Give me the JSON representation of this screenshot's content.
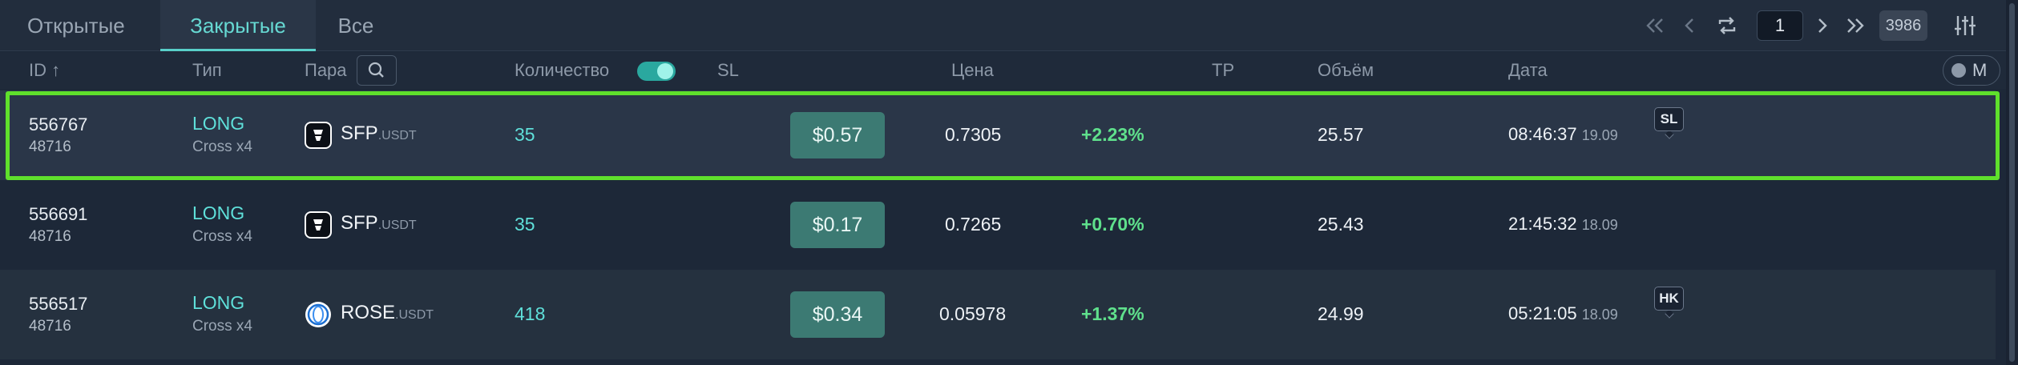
{
  "tabs": [
    {
      "label": "Открытые"
    },
    {
      "label": "Закрытые",
      "active": true
    },
    {
      "label": "Все"
    }
  ],
  "pagination": {
    "current_page": "1",
    "total": "3986"
  },
  "columns": {
    "id": "ID ↑",
    "type": "Тип",
    "pair": "Пара",
    "quantity": "Количество",
    "sl": "SL",
    "price": "Цена",
    "tp": "TP",
    "volume": "Объём",
    "date": "Дата"
  },
  "mode_toggle": {
    "label": "M"
  },
  "colors": {
    "accent": "#5fe0da",
    "profit": "#5fe08c",
    "selected_outline": "#5fe02c",
    "sl_button": "#3c7a73"
  },
  "rows": [
    {
      "id": "556767",
      "sub_id": "48716",
      "side": "LONG",
      "margin": "Cross x4",
      "coin_icon": "sfp-coin-icon",
      "pair_base": "SFP",
      "pair_quote": ".USDT",
      "quantity": "35",
      "sl_price": "$0.57",
      "price": "0.7305",
      "pnl_pct": "+2.23%",
      "volume": "25.57",
      "time": "08:46:37",
      "day": "19.09",
      "tag": "SL"
    },
    {
      "id": "556691",
      "sub_id": "48716",
      "side": "LONG",
      "margin": "Cross x4",
      "coin_icon": "sfp-coin-icon",
      "pair_base": "SFP",
      "pair_quote": ".USDT",
      "quantity": "35",
      "sl_price": "$0.17",
      "price": "0.7265",
      "pnl_pct": "+0.70%",
      "volume": "25.43",
      "time": "21:45:32",
      "day": "18.09",
      "tag": ""
    },
    {
      "id": "556517",
      "sub_id": "48716",
      "side": "LONG",
      "margin": "Cross x4",
      "coin_icon": "rose-coin-icon",
      "pair_base": "ROSE",
      "pair_quote": ".USDT",
      "quantity": "418",
      "sl_price": "$0.34",
      "price": "0.05978",
      "pnl_pct": "+1.37%",
      "volume": "24.99",
      "time": "05:21:05",
      "day": "18.09",
      "tag": "HK"
    }
  ]
}
